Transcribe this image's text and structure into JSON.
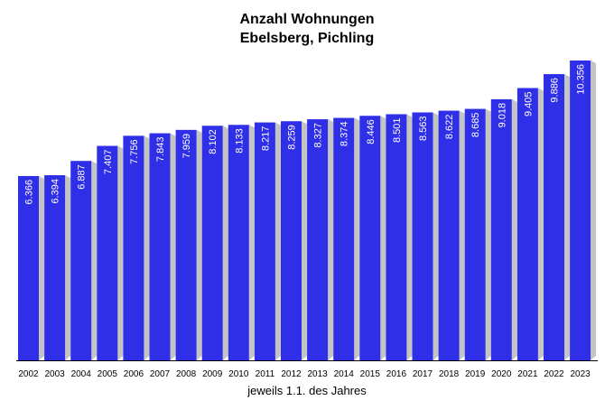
{
  "chart_data": {
    "type": "bar",
    "title_lines": [
      "Anzahl Wohnungen",
      "Ebelsberg, Pichling"
    ],
    "xlabel": "jeweils 1.1. des Jahres",
    "ylabel": "",
    "categories": [
      "2002",
      "2003",
      "2004",
      "2005",
      "2006",
      "2007",
      "2008",
      "2009",
      "2010",
      "2011",
      "2012",
      "2013",
      "2014",
      "2015",
      "2016",
      "2017",
      "2018",
      "2019",
      "2020",
      "2021",
      "2022",
      "2023"
    ],
    "values": [
      6366,
      6394,
      6887,
      7407,
      7756,
      7843,
      7959,
      8102,
      8133,
      8217,
      8259,
      8327,
      8374,
      8446,
      8501,
      8563,
      8622,
      8685,
      9018,
      9405,
      9886,
      10356
    ],
    "value_labels": [
      "6.366",
      "6.394",
      "6.887",
      "7.407",
      "7.756",
      "7.843",
      "7.959",
      "8.102",
      "8.133",
      "8.217",
      "8.259",
      "8.327",
      "8.374",
      "8.446",
      "8.501",
      "8.563",
      "8.622",
      "8.685",
      "9.018",
      "9.405",
      "9.886",
      "10.356"
    ],
    "ylim": [
      0,
      10356
    ],
    "grid": false,
    "legend": "none",
    "bar_color": "#2f2fe8",
    "bar_shadow_color": "#c4c4c4",
    "label_color": "#ffffff"
  }
}
